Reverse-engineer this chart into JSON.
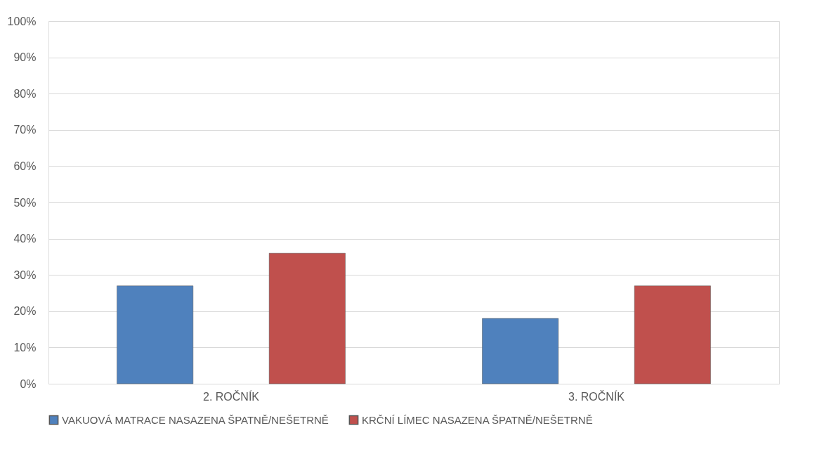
{
  "chart_data": {
    "type": "bar",
    "categories": [
      "2. ROČNÍK",
      "3. ROČNÍK"
    ],
    "series": [
      {
        "name": "VAKUOVÁ MATRACE NASAZENA ŠPATNĚ/NEŠETRNĚ",
        "color": "#4f81bd",
        "values": [
          27,
          18
        ]
      },
      {
        "name": "KRČNÍ LÍMEC NASAZENA ŠPATNĚ/NEŠETRNĚ",
        "color": "#c0504d",
        "values": [
          36,
          27
        ]
      }
    ],
    "ylim": [
      0,
      100
    ],
    "yticks": [
      {
        "value": 0,
        "label": "0%"
      },
      {
        "value": 10,
        "label": "10%"
      },
      {
        "value": 20,
        "label": "20%"
      },
      {
        "value": 30,
        "label": "30%"
      },
      {
        "value": 40,
        "label": "40%"
      },
      {
        "value": 50,
        "label": "50%"
      },
      {
        "value": 60,
        "label": "60%"
      },
      {
        "value": 70,
        "label": "70%"
      },
      {
        "value": 80,
        "label": "80%"
      },
      {
        "value": 90,
        "label": "90%"
      },
      {
        "value": 100,
        "label": "100%"
      }
    ],
    "grid": "y",
    "legend": "bottom"
  }
}
